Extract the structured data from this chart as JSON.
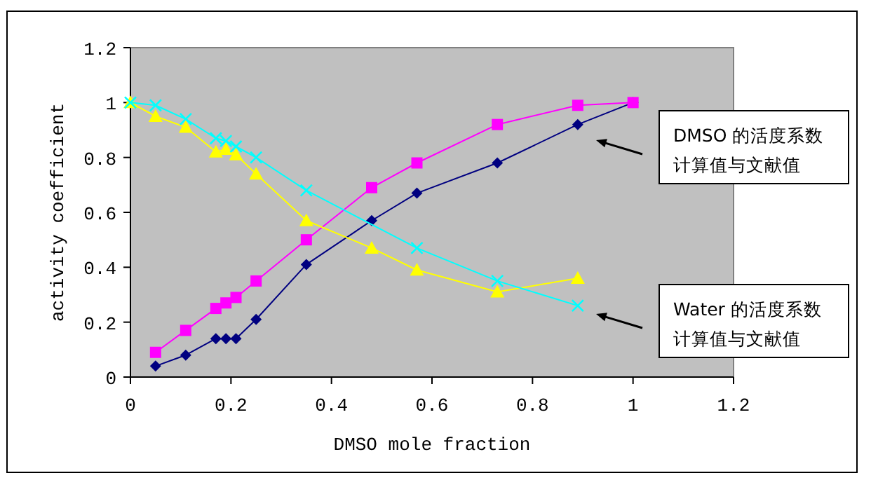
{
  "chart_data": {
    "type": "line",
    "xlabel": "DMSO mole fraction",
    "ylabel": "activity coefficient",
    "xlim": [
      0,
      1.2
    ],
    "xticks": [
      0,
      0.2,
      0.4,
      0.6,
      0.8,
      1,
      1.2
    ],
    "ylim": [
      0,
      1.2
    ],
    "yticks": [
      0,
      0.2,
      0.4,
      0.6,
      0.8,
      1,
      1.2
    ],
    "grid": false,
    "series": [
      {
        "color": "#000080",
        "marker": "diamond",
        "x": [
          0.05,
          0.11,
          0.17,
          0.19,
          0.21,
          0.25,
          0.35,
          0.48,
          0.57,
          0.73,
          0.89,
          1.0
        ],
        "values": [
          0.04,
          0.08,
          0.14,
          0.14,
          0.14,
          0.21,
          0.41,
          0.57,
          0.67,
          0.78,
          0.92,
          1.0
        ]
      },
      {
        "color": "#ff00ff",
        "marker": "square",
        "x": [
          0.05,
          0.11,
          0.17,
          0.19,
          0.21,
          0.25,
          0.35,
          0.48,
          0.57,
          0.73,
          0.89,
          1.0
        ],
        "values": [
          0.09,
          0.17,
          0.25,
          0.27,
          0.29,
          0.35,
          0.5,
          0.69,
          0.78,
          0.92,
          0.99,
          1.0
        ]
      },
      {
        "color": "#ffff00",
        "marker": "triangle",
        "x": [
          0,
          0.05,
          0.11,
          0.17,
          0.19,
          0.21,
          0.25,
          0.35,
          0.48,
          0.57,
          0.73,
          0.89
        ],
        "values": [
          1.0,
          0.95,
          0.91,
          0.82,
          0.83,
          0.81,
          0.74,
          0.57,
          0.47,
          0.39,
          0.31,
          0.36
        ]
      },
      {
        "color": "#00ffff",
        "marker": "cross",
        "x": [
          0,
          0.05,
          0.11,
          0.17,
          0.19,
          0.21,
          0.25,
          0.35,
          0.57,
          0.73,
          0.89
        ],
        "values": [
          1.0,
          0.99,
          0.94,
          0.87,
          0.86,
          0.84,
          0.8,
          0.68,
          0.47,
          0.35,
          0.26
        ]
      }
    ],
    "annotations": [
      "DMSO 的活度系数计算值与文献值",
      "Water 的活度系数计算值与文献值"
    ]
  }
}
